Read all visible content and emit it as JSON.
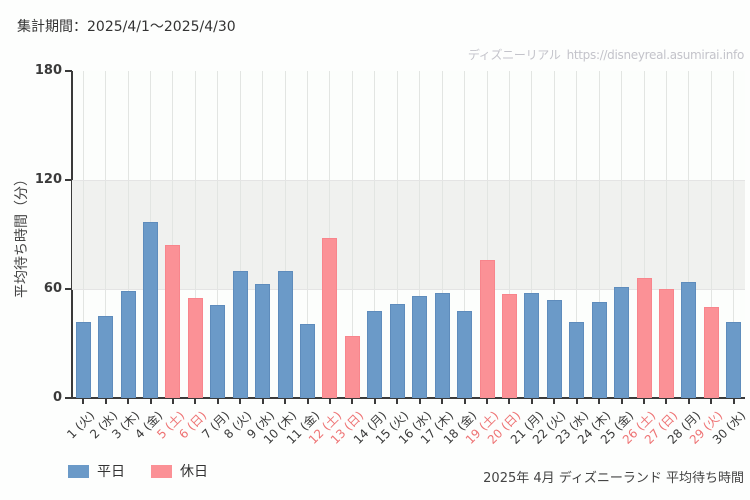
{
  "header": {
    "period_label": "集計期間：2025/4/1～2025/4/30"
  },
  "watermark": {
    "site_name": "ディズニーリアル",
    "url": "https://disneyreal.asumirai.info"
  },
  "footer": {
    "caption": "2025年 4月 ディズニーランド 平均待ち時間"
  },
  "legend": {
    "items": [
      {
        "label": "平日",
        "color": "#6b9ac8",
        "border": "#5e8cbc"
      },
      {
        "label": "休日",
        "color": "#fb9196",
        "border": "#f8858c"
      }
    ]
  },
  "colors": {
    "weekday_bar": "#6b9ac8",
    "weekday_bar_border": "#5e8cbc",
    "holiday_bar": "#fb9196",
    "holiday_bar_border": "#f8858c",
    "holiday_label": "#ee7374",
    "band": "#f0f1ef",
    "axis": "#3a3a3a",
    "watermark": "#c3c3ca"
  },
  "chart_data": {
    "type": "bar",
    "title": "2025年 4月 ディズニーランド 平均待ち時間",
    "xlabel": "",
    "ylabel": "平均待ち時間（分）",
    "ylim": [
      0,
      180
    ],
    "yticks": [
      0,
      60,
      120,
      180
    ],
    "shaded_band": [
      60,
      120
    ],
    "grid": "vertical gridline at each category; horizontal lines at 60 and 120",
    "legend_position": "bottom-left",
    "categories": [
      "1 (火)",
      "2 (水)",
      "3 (木)",
      "4 (金)",
      "5 (土)",
      "6 (日)",
      "7 (月)",
      "8 (火)",
      "9 (水)",
      "10 (木)",
      "11 (金)",
      "12 (土)",
      "13 (日)",
      "14 (月)",
      "15 (火)",
      "16 (水)",
      "17 (木)",
      "18 (金)",
      "19 (土)",
      "20 (日)",
      "21 (月)",
      "22 (火)",
      "23 (水)",
      "24 (木)",
      "25 (金)",
      "26 (土)",
      "27 (日)",
      "28 (月)",
      "29 (火)",
      "30 (水)"
    ],
    "values": [
      42,
      45,
      59,
      97,
      84,
      55,
      51,
      70,
      63,
      70,
      41,
      88,
      34,
      48,
      52,
      56,
      58,
      48,
      76,
      57,
      58,
      54,
      42,
      53,
      61,
      66,
      60,
      64,
      50,
      42
    ],
    "day_types": [
      "weekday",
      "weekday",
      "weekday",
      "weekday",
      "holiday",
      "holiday",
      "weekday",
      "weekday",
      "weekday",
      "weekday",
      "weekday",
      "holiday",
      "holiday",
      "weekday",
      "weekday",
      "weekday",
      "weekday",
      "weekday",
      "holiday",
      "holiday",
      "weekday",
      "weekday",
      "weekday",
      "weekday",
      "weekday",
      "holiday",
      "holiday",
      "weekday",
      "holiday",
      "weekday"
    ],
    "series": [
      {
        "name": "平日",
        "color": "#6b9ac8"
      },
      {
        "name": "休日",
        "color": "#fb9196"
      }
    ]
  }
}
